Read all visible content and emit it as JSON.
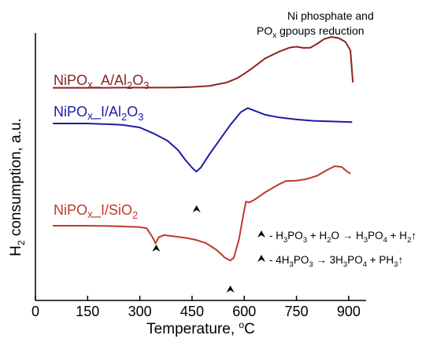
{
  "chart_data": {
    "type": "line",
    "xlabel": "Temperature, °C",
    "ylabel": "H₂ consumption, a.u.",
    "xlim": [
      0,
      950
    ],
    "xticks": [
      0,
      150,
      300,
      450,
      600,
      750,
      900
    ],
    "yticks": "none",
    "grid": false,
    "series": [
      {
        "name": "NiPOx_A/Al2O3",
        "color": "#8b2323",
        "points": [
          [
            50,
            0.02
          ],
          [
            100,
            0.02
          ],
          [
            150,
            0.02
          ],
          [
            200,
            0.02
          ],
          [
            250,
            0.021
          ],
          [
            300,
            0.021
          ],
          [
            350,
            0.021
          ],
          [
            400,
            0.022
          ],
          [
            450,
            0.026
          ],
          [
            500,
            0.034
          ],
          [
            550,
            0.06
          ],
          [
            580,
            0.092
          ],
          [
            600,
            0.125
          ],
          [
            630,
            0.18
          ],
          [
            660,
            0.24
          ],
          [
            700,
            0.29
          ],
          [
            730,
            0.32
          ],
          [
            750,
            0.327
          ],
          [
            770,
            0.318
          ],
          [
            790,
            0.32
          ],
          [
            810,
            0.35
          ],
          [
            830,
            0.385
          ],
          [
            850,
            0.4
          ],
          [
            870,
            0.393
          ],
          [
            890,
            0.365
          ],
          [
            905,
            0.3
          ],
          [
            912,
            0.06
          ]
        ]
      },
      {
        "name": "NiPOx_I/Al2O3",
        "color": "#1c1ca8",
        "points": [
          [
            50,
            0.0
          ],
          [
            100,
            0.0
          ],
          [
            150,
            0.0
          ],
          [
            200,
            -0.005
          ],
          [
            250,
            -0.01
          ],
          [
            300,
            -0.03
          ],
          [
            340,
            -0.075
          ],
          [
            380,
            -0.13
          ],
          [
            410,
            -0.2
          ],
          [
            430,
            -0.27
          ],
          [
            450,
            -0.33
          ],
          [
            462,
            -0.36
          ],
          [
            475,
            -0.33
          ],
          [
            500,
            -0.23
          ],
          [
            530,
            -0.12
          ],
          [
            560,
            -0.01
          ],
          [
            590,
            0.085
          ],
          [
            610,
            0.115
          ],
          [
            630,
            0.095
          ],
          [
            660,
            0.065
          ],
          [
            700,
            0.045
          ],
          [
            750,
            0.03
          ],
          [
            800,
            0.02
          ],
          [
            850,
            0.015
          ],
          [
            910,
            0.01
          ]
        ]
      },
      {
        "name": "NiPOx_I/SiO2",
        "color": "#c0392b",
        "points": [
          [
            50,
            0.0
          ],
          [
            100,
            0.0
          ],
          [
            150,
            0.0
          ],
          [
            200,
            -0.002
          ],
          [
            250,
            -0.005
          ],
          [
            300,
            -0.01
          ],
          [
            320,
            -0.02
          ],
          [
            335,
            -0.08
          ],
          [
            345,
            -0.13
          ],
          [
            355,
            -0.085
          ],
          [
            370,
            -0.07
          ],
          [
            400,
            -0.08
          ],
          [
            430,
            -0.09
          ],
          [
            460,
            -0.105
          ],
          [
            490,
            -0.13
          ],
          [
            520,
            -0.18
          ],
          [
            545,
            -0.24
          ],
          [
            560,
            -0.26
          ],
          [
            570,
            -0.24
          ],
          [
            585,
            -0.1
          ],
          [
            600,
            0.12
          ],
          [
            605,
            0.18
          ],
          [
            615,
            0.175
          ],
          [
            630,
            0.195
          ],
          [
            660,
            0.25
          ],
          [
            700,
            0.31
          ],
          [
            720,
            0.335
          ],
          [
            750,
            0.337
          ],
          [
            780,
            0.35
          ],
          [
            810,
            0.375
          ],
          [
            840,
            0.42
          ],
          [
            860,
            0.445
          ],
          [
            880,
            0.44
          ],
          [
            895,
            0.405
          ],
          [
            905,
            0.39
          ]
        ]
      }
    ],
    "labels": {
      "a_al2o3": "NiPOx_A/Al2O3",
      "i_al2o3": "NiPOx_I/Al2O3",
      "i_sio2": "NiPOx_I/SiO2"
    },
    "annotations": {
      "top_note_line1": "Ni phosphate and",
      "top_note_line2": "POx gpoups  reduction",
      "eq1": "- H3PO3 + H2O → H3PO4 + H2↑",
      "eq2": "- 4H3PO3 → 3H3PO4 + PH3↑",
      "markers_at": [
        463,
        347,
        560
      ]
    }
  }
}
